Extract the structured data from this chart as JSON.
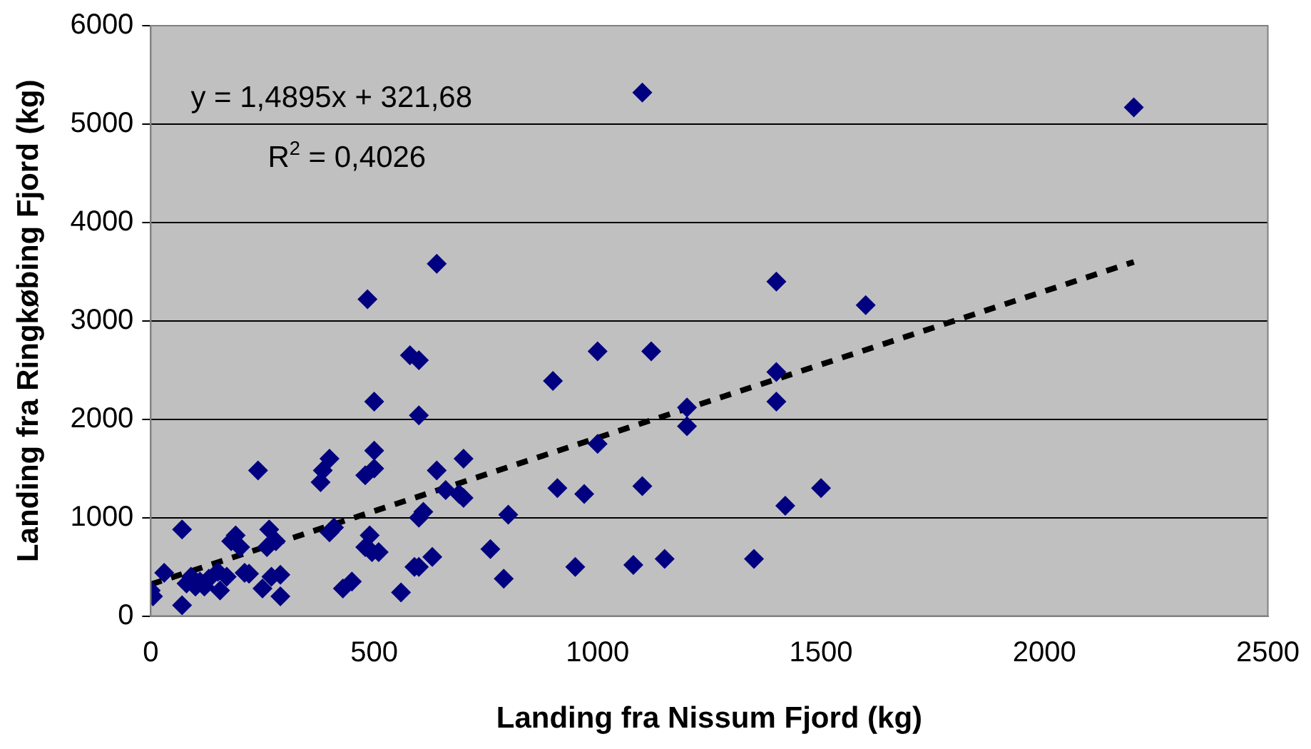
{
  "chart_data": {
    "type": "scatter",
    "xlabel": "Landing fra Nissum Fjord (kg)",
    "ylabel": "Landing fra Ringkøbing Fjord (kg)",
    "xlim": [
      0,
      2500
    ],
    "xticks": [
      0,
      500,
      1000,
      1500,
      2000,
      2500
    ],
    "ylim": [
      0,
      6000
    ],
    "yticks": [
      0,
      1000,
      2000,
      3000,
      4000,
      5000,
      6000
    ],
    "grid": "y",
    "legend": false,
    "marker": "diamond",
    "series": [
      {
        "color": "#000080",
        "x": [
          0,
          5,
          30,
          70,
          70,
          80,
          90,
          100,
          110,
          120,
          130,
          150,
          155,
          170,
          180,
          190,
          200,
          210,
          220,
          240,
          250,
          260,
          265,
          270,
          280,
          290,
          290,
          380,
          385,
          400,
          400,
          410,
          430,
          450,
          480,
          480,
          485,
          490,
          495,
          500,
          500,
          500,
          510,
          560,
          580,
          590,
          600,
          600,
          600,
          600,
          610,
          630,
          640,
          640,
          660,
          690,
          700,
          700,
          760,
          790,
          800,
          900,
          910,
          950,
          970,
          1000,
          1000,
          1080,
          1100,
          1100,
          1120,
          1150,
          1200,
          1200,
          1350,
          1400,
          1400,
          1400,
          1420,
          1500,
          1600,
          2200
        ],
        "values": [
          260,
          200,
          440,
          880,
          110,
          330,
          400,
          300,
          350,
          300,
          380,
          450,
          260,
          400,
          760,
          820,
          700,
          440,
          430,
          1480,
          280,
          700,
          880,
          400,
          760,
          200,
          420,
          1360,
          1480,
          850,
          1600,
          900,
          280,
          350,
          700,
          1430,
          3220,
          820,
          650,
          1500,
          1680,
          2180,
          650,
          240,
          2650,
          500,
          2040,
          2600,
          1000,
          500,
          1060,
          600,
          1480,
          3580,
          1280,
          1240,
          1600,
          1200,
          680,
          380,
          1030,
          2390,
          1300,
          500,
          1240,
          2690,
          1750,
          520,
          1320,
          5320,
          2690,
          580,
          2120,
          1930,
          580,
          3400,
          2480,
          2180,
          1120,
          1300,
          3160,
          5170
        ]
      },
      {
        "type": "line",
        "color": "#000000",
        "line_style": "dashed",
        "marker": "none",
        "x": [
          0,
          2200
        ],
        "values": [
          322,
          3599
        ]
      }
    ],
    "annotations": [
      "y = 1,4895x + 321,68",
      "R$^{2}$ = 0,4026"
    ]
  }
}
